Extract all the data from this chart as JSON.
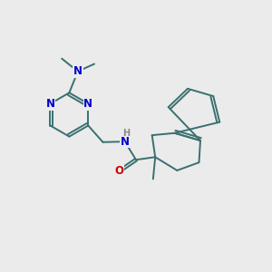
{
  "bg": "#ebebeb",
  "bc": "#3a7070",
  "nc": "#0000cc",
  "oc": "#cc0000",
  "hc": "#888888",
  "lw": 1.4,
  "fs": 8.5,
  "fss": 7.0,
  "xlim": [
    0,
    10
  ],
  "ylim": [
    0,
    10
  ],
  "bl": 0.82
}
